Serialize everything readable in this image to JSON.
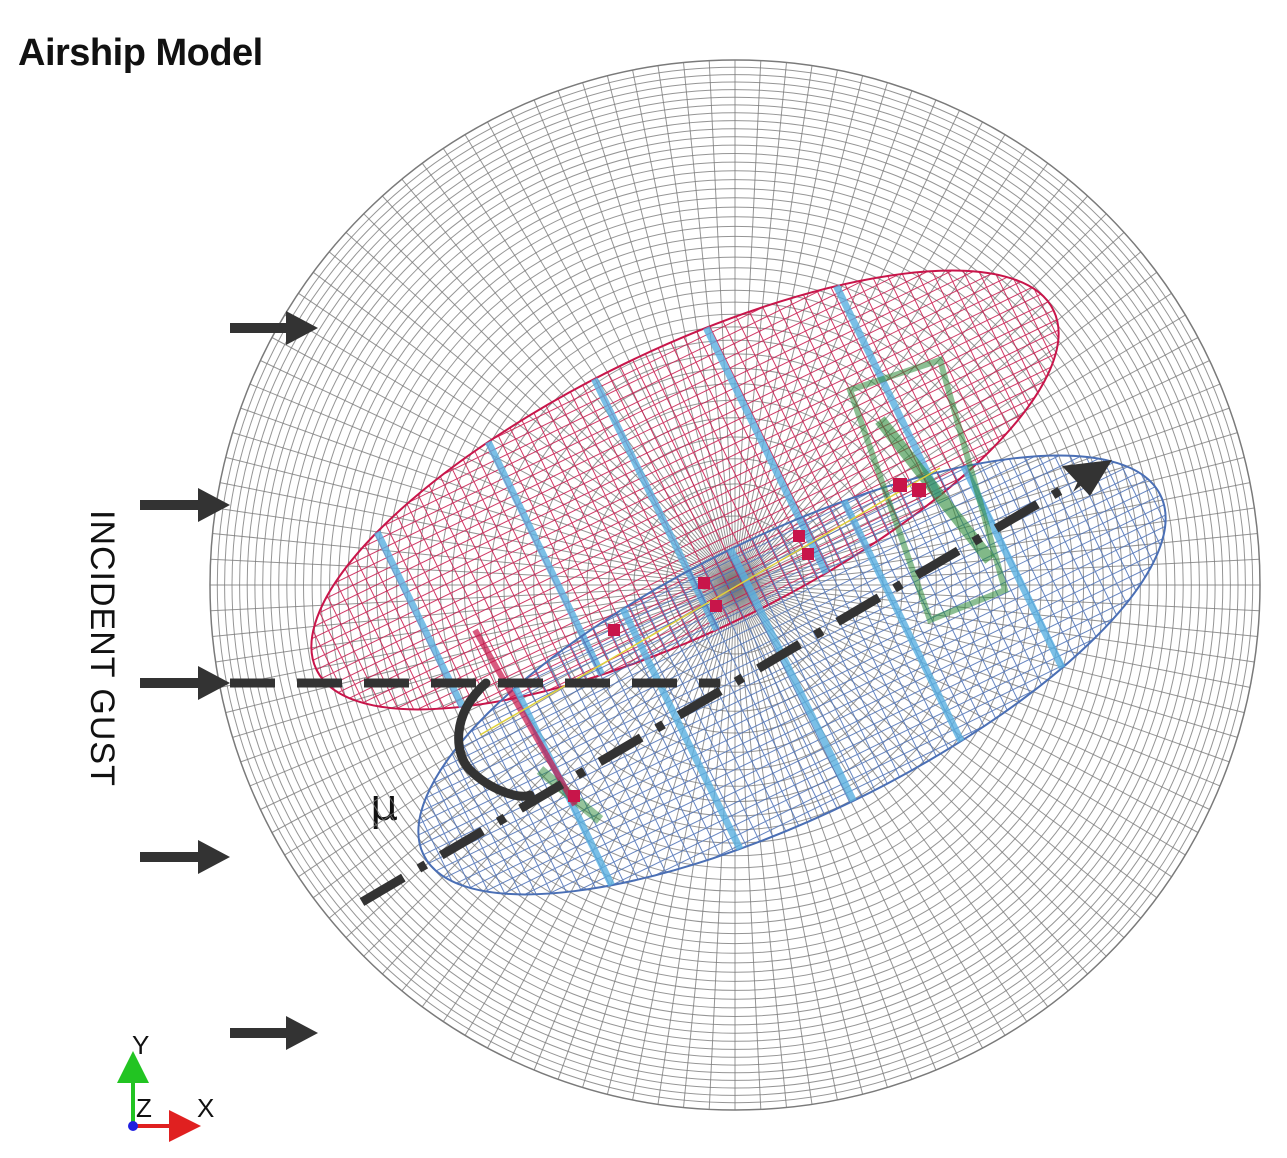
{
  "title": "Airship Model",
  "gust_label": "INCIDENT GUST",
  "angle_label": "μ",
  "axes": {
    "y": "Y",
    "z": "Z",
    "x": "X"
  },
  "colors": {
    "domain_mesh": "#7a7a7a",
    "upper_hull": "#c8154a",
    "lower_hull": "#4a6fb5",
    "hull_frames": "#5ab0e0",
    "fins": "#2e8b3a",
    "arrows": "#333333",
    "axis_y": "#22c422",
    "axis_x": "#e02020",
    "axis_z": "#2020e0"
  }
}
